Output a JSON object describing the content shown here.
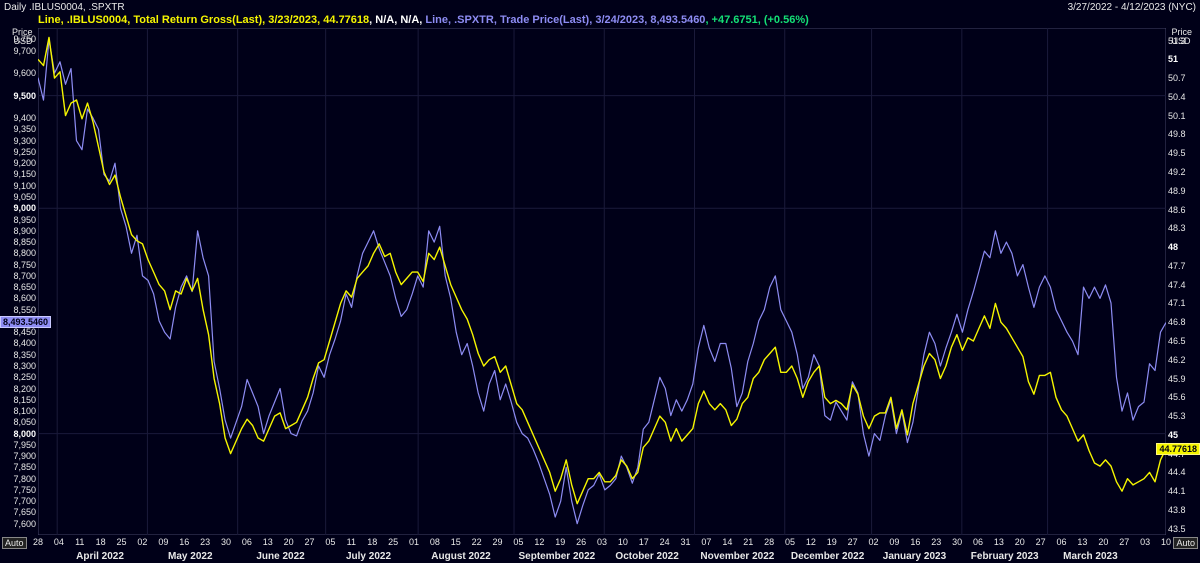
{
  "header": {
    "title_left": "Daily .IBLUS0004, .SPXTR",
    "title_right": "3/27/2022 - 4/12/2023 (NYC)"
  },
  "legend": {
    "s1_prefix": "Line, .IBLUS0004, Total Return Gross(Last), 3/23/2023, 44.77618",
    "na": ", N/A, N/A, ",
    "s2_prefix": "Line, .SPXTR, Trade Price(Last), 3/24/2023, 8,493.5460",
    "s2_change": ", +47.6751, (+0.56%)"
  },
  "axes": {
    "left_label_top": "Price",
    "left_label_sub": "USD",
    "right_label_top": "Price",
    "right_label_sub": "USD",
    "left_ticks": [
      {
        "v": 9750,
        "label": "9,750"
      },
      {
        "v": 9700,
        "label": "9,700"
      },
      {
        "v": 9600,
        "label": "9,600"
      },
      {
        "v": 9500,
        "label": "9,500",
        "emph": true
      },
      {
        "v": 9400,
        "label": "9,400"
      },
      {
        "v": 9350,
        "label": "9,350"
      },
      {
        "v": 9300,
        "label": "9,300"
      },
      {
        "v": 9250,
        "label": "9,250"
      },
      {
        "v": 9200,
        "label": "9,200"
      },
      {
        "v": 9150,
        "label": "9,150"
      },
      {
        "v": 9100,
        "label": "9,100"
      },
      {
        "v": 9050,
        "label": "9,050"
      },
      {
        "v": 9000,
        "label": "9,000",
        "emph": true
      },
      {
        "v": 8950,
        "label": "8,950"
      },
      {
        "v": 8900,
        "label": "8,900"
      },
      {
        "v": 8850,
        "label": "8,850"
      },
      {
        "v": 8800,
        "label": "8,800"
      },
      {
        "v": 8750,
        "label": "8,750"
      },
      {
        "v": 8700,
        "label": "8,700"
      },
      {
        "v": 8650,
        "label": "8,650"
      },
      {
        "v": 8600,
        "label": "8,600"
      },
      {
        "v": 8550,
        "label": "8,550"
      },
      {
        "v": 8500,
        "label": "8,500"
      },
      {
        "v": 8450,
        "label": "8,450"
      },
      {
        "v": 8400,
        "label": "8,400"
      },
      {
        "v": 8350,
        "label": "8,350"
      },
      {
        "v": 8300,
        "label": "8,300"
      },
      {
        "v": 8250,
        "label": "8,250"
      },
      {
        "v": 8200,
        "label": "8,200"
      },
      {
        "v": 8150,
        "label": "8,150"
      },
      {
        "v": 8100,
        "label": "8,100"
      },
      {
        "v": 8050,
        "label": "8,050"
      },
      {
        "v": 8000,
        "label": "8,000",
        "emph": true
      },
      {
        "v": 7950,
        "label": "7,950"
      },
      {
        "v": 7900,
        "label": "7,900"
      },
      {
        "v": 7850,
        "label": "7,850"
      },
      {
        "v": 7800,
        "label": "7,800"
      },
      {
        "v": 7750,
        "label": "7,750"
      },
      {
        "v": 7700,
        "label": "7,700"
      },
      {
        "v": 7650,
        "label": "7,650"
      },
      {
        "v": 7600,
        "label": "7,600"
      }
    ],
    "right_ticks": [
      {
        "v": 51.3,
        "label": "51.3"
      },
      {
        "v": 51.0,
        "label": "51",
        "emph": true
      },
      {
        "v": 50.7,
        "label": "50.7"
      },
      {
        "v": 50.4,
        "label": "50.4"
      },
      {
        "v": 50.1,
        "label": "50.1"
      },
      {
        "v": 49.8,
        "label": "49.8"
      },
      {
        "v": 49.5,
        "label": "49.5"
      },
      {
        "v": 49.2,
        "label": "49.2"
      },
      {
        "v": 48.9,
        "label": "48.9"
      },
      {
        "v": 48.6,
        "label": "48.6"
      },
      {
        "v": 48.3,
        "label": "48.3"
      },
      {
        "v": 48.0,
        "label": "48",
        "emph": true
      },
      {
        "v": 47.7,
        "label": "47.7"
      },
      {
        "v": 47.4,
        "label": "47.4"
      },
      {
        "v": 47.1,
        "label": "47.1"
      },
      {
        "v": 46.8,
        "label": "46.8"
      },
      {
        "v": 46.5,
        "label": "46.5"
      },
      {
        "v": 46.2,
        "label": "46.2"
      },
      {
        "v": 45.9,
        "label": "45.9"
      },
      {
        "v": 45.6,
        "label": "45.6"
      },
      {
        "v": 45.3,
        "label": "45.3"
      },
      {
        "v": 45.0,
        "label": "45",
        "emph": true
      },
      {
        "v": 44.7,
        "label": "44.7"
      },
      {
        "v": 44.4,
        "label": "44.4"
      },
      {
        "v": 44.1,
        "label": "44.1"
      },
      {
        "v": 43.8,
        "label": "43.8"
      },
      {
        "v": 43.5,
        "label": "43.5"
      }
    ],
    "left_range": {
      "min": 7550,
      "max": 9800
    },
    "right_range": {
      "min": 43.4,
      "max": 51.5
    }
  },
  "x_axis": {
    "days_ticks": [
      "28",
      "04",
      "11",
      "18",
      "25",
      "02",
      "09",
      "16",
      "23",
      "30",
      "06",
      "13",
      "20",
      "27",
      "05",
      "11",
      "18",
      "25",
      "01",
      "08",
      "15",
      "22",
      "29",
      "05",
      "12",
      "19",
      "26",
      "03",
      "10",
      "17",
      "24",
      "31",
      "07",
      "14",
      "21",
      "28",
      "05",
      "12",
      "19",
      "27",
      "02",
      "09",
      "16",
      "23",
      "30",
      "06",
      "13",
      "20",
      "27",
      "06",
      "13",
      "20",
      "27",
      "03",
      "10"
    ],
    "months": [
      {
        "label": "April 2022",
        "pos": 0.055
      },
      {
        "label": "May 2022",
        "pos": 0.135
      },
      {
        "label": "June 2022",
        "pos": 0.215
      },
      {
        "label": "July 2022",
        "pos": 0.293
      },
      {
        "label": "August 2022",
        "pos": 0.375
      },
      {
        "label": "September 2022",
        "pos": 0.46
      },
      {
        "label": "October 2022",
        "pos": 0.54
      },
      {
        "label": "November 2022",
        "pos": 0.62
      },
      {
        "label": "December 2022",
        "pos": 0.7
      },
      {
        "label": "January 2023",
        "pos": 0.777
      },
      {
        "label": "February 2023",
        "pos": 0.857
      },
      {
        "label": "March 2023",
        "pos": 0.933
      }
    ]
  },
  "badges": {
    "left_value": "8,493.5460",
    "right_value": "44.77618"
  },
  "auto_label": "Auto",
  "chart": {
    "type": "line",
    "background_color": "#000018",
    "grid_color": "#1a1a3a",
    "border_color": "#444466",
    "series": [
      {
        "name": ".SPXTR",
        "color": "#8d8cf3",
        "axis": "left",
        "line_width": 1.2,
        "data": [
          9580,
          9480,
          9750,
          9600,
          9650,
          9550,
          9620,
          9300,
          9260,
          9440,
          9400,
          9350,
          9150,
          9120,
          9200,
          9000,
          8920,
          8800,
          8880,
          8700,
          8680,
          8620,
          8500,
          8450,
          8420,
          8560,
          8650,
          8700,
          8630,
          8900,
          8780,
          8700,
          8320,
          8200,
          8060,
          7980,
          8050,
          8120,
          8240,
          8180,
          8120,
          8000,
          8080,
          8140,
          8200,
          8060,
          8000,
          7990,
          8057,
          8100,
          8180,
          8300,
          8250,
          8350,
          8420,
          8500,
          8620,
          8560,
          8700,
          8800,
          8850,
          8900,
          8820,
          8760,
          8700,
          8600,
          8520,
          8550,
          8620,
          8700,
          8650,
          8900,
          8850,
          8920,
          8700,
          8600,
          8450,
          8350,
          8400,
          8300,
          8180,
          8100,
          8220,
          8280,
          8150,
          8220,
          8140,
          8050,
          8000,
          7980,
          7930,
          7870,
          7800,
          7730,
          7630,
          7700,
          7850,
          7700,
          7600,
          7680,
          7750,
          7770,
          7820,
          7750,
          7770,
          7800,
          7900,
          7850,
          7780,
          7850,
          8020,
          8050,
          8150,
          8250,
          8200,
          8080,
          8150,
          8100,
          8150,
          8220,
          8380,
          8480,
          8380,
          8320,
          8400,
          8400,
          8290,
          8120,
          8180,
          8320,
          8400,
          8500,
          8550,
          8650,
          8700,
          8550,
          8500,
          8450,
          8350,
          8200,
          8250,
          8350,
          8300,
          8080,
          8060,
          8140,
          8100,
          8060,
          8230,
          8180,
          8000,
          7900,
          8000,
          7970,
          8080,
          8150,
          8000,
          8100,
          7960,
          8050,
          8200,
          8350,
          8450,
          8400,
          8300,
          8380,
          8450,
          8530,
          8450,
          8550,
          8630,
          8720,
          8810,
          8780,
          8900,
          8800,
          8850,
          8800,
          8700,
          8750,
          8650,
          8560,
          8650,
          8700,
          8650,
          8550,
          8500,
          8450,
          8410,
          8350,
          8650,
          8600,
          8650,
          8600,
          8660,
          8580,
          8250,
          8100,
          8180,
          8060,
          8120,
          8140,
          8310,
          8280,
          8450,
          8493
        ]
      },
      {
        "name": ".IBLUS0004",
        "color": "#f5f500",
        "axis": "right",
        "line_width": 1.4,
        "data": [
          51.0,
          50.9,
          51.35,
          50.7,
          50.8,
          50.1,
          50.3,
          50.35,
          50.05,
          50.3,
          50.0,
          49.6,
          49.2,
          49.0,
          49.15,
          48.8,
          48.5,
          48.2,
          48.1,
          48.05,
          47.8,
          47.6,
          47.4,
          47.3,
          47.0,
          47.3,
          47.25,
          47.5,
          47.3,
          47.5,
          47.0,
          46.6,
          45.9,
          45.5,
          44.95,
          44.7,
          44.9,
          45.1,
          45.25,
          45.15,
          44.95,
          44.9,
          45.1,
          45.3,
          45.35,
          45.1,
          45.15,
          45.2,
          45.4,
          45.6,
          45.9,
          46.15,
          46.2,
          46.5,
          46.8,
          47.1,
          47.3,
          47.2,
          47.5,
          47.6,
          47.7,
          47.9,
          48.05,
          47.85,
          47.9,
          47.6,
          47.4,
          47.5,
          47.6,
          47.6,
          47.45,
          47.9,
          47.8,
          48.0,
          47.7,
          47.4,
          47.2,
          47.0,
          46.85,
          46.6,
          46.3,
          46.1,
          46.2,
          46.25,
          46.0,
          46.1,
          45.8,
          45.5,
          45.4,
          45.2,
          45.0,
          44.8,
          44.6,
          44.4,
          44.1,
          44.3,
          44.6,
          44.2,
          43.9,
          44.1,
          44.3,
          44.3,
          44.4,
          44.25,
          44.25,
          44.35,
          44.6,
          44.5,
          44.3,
          44.4,
          44.8,
          44.9,
          45.1,
          45.3,
          45.2,
          44.9,
          45.1,
          44.9,
          45.0,
          45.1,
          45.5,
          45.7,
          45.5,
          45.4,
          45.5,
          45.4,
          45.15,
          45.25,
          45.5,
          45.6,
          45.9,
          46.0,
          46.2,
          46.3,
          46.4,
          46.0,
          46.0,
          46.1,
          45.9,
          45.6,
          45.85,
          46.0,
          46.1,
          45.6,
          45.5,
          45.55,
          45.5,
          45.4,
          45.8,
          45.65,
          45.3,
          45.1,
          45.3,
          45.35,
          45.35,
          45.6,
          45.1,
          45.4,
          45.0,
          45.5,
          45.8,
          46.1,
          46.3,
          46.2,
          45.9,
          46.1,
          46.4,
          46.6,
          46.35,
          46.55,
          46.5,
          46.7,
          46.9,
          46.7,
          47.1,
          46.8,
          46.7,
          46.55,
          46.4,
          46.25,
          45.85,
          45.65,
          45.95,
          45.95,
          46.0,
          45.6,
          45.4,
          45.3,
          45.1,
          44.9,
          45.0,
          44.75,
          44.55,
          44.5,
          44.6,
          44.5,
          44.25,
          44.1,
          44.3,
          44.2,
          44.25,
          44.3,
          44.4,
          44.25,
          44.6,
          44.78
        ]
      }
    ]
  }
}
